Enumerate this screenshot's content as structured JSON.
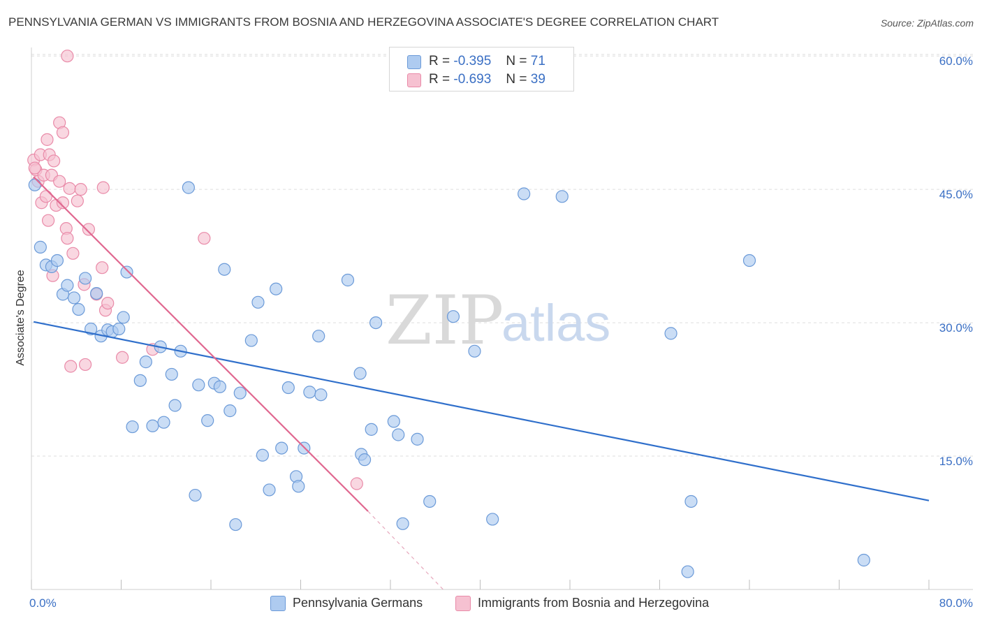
{
  "title": "PENNSYLVANIA GERMAN VS IMMIGRANTS FROM BOSNIA AND HERZEGOVINA ASSOCIATE'S DEGREE CORRELATION CHART",
  "source": "Source: ZipAtlas.com",
  "watermark": {
    "zip": "ZIP",
    "atlas": "atlas"
  },
  "legend_top": {
    "rows": [
      {
        "r_label": "R =",
        "r_value": "-0.395",
        "n_label": "N =",
        "n_value": "71"
      },
      {
        "r_label": "R =",
        "r_value": "-0.693",
        "n_label": "N =",
        "n_value": "39"
      }
    ]
  },
  "legend_bottom": {
    "series1": "Pennsylvania Germans",
    "series2": "Immigrants from Bosnia and Herzegovina"
  },
  "colors": {
    "blue_fill": "#aecbf0",
    "blue_stroke": "#6b9ad8",
    "blue_line": "#2f6fcb",
    "pink_fill": "#f6c1d1",
    "pink_stroke": "#e98aa8",
    "pink_line": "#e06890",
    "grid": "#dedede",
    "axis_label": "#3a6fc4"
  },
  "chart_data": {
    "type": "scatter",
    "title": "PENNSYLVANIA GERMAN VS IMMIGRANTS FROM BOSNIA AND HERZEGOVINA ASSOCIATE'S DEGREE CORRELATION CHART",
    "xlabel": "",
    "ylabel": "Associate's Degree",
    "xlim": [
      0,
      80
    ],
    "ylim": [
      0,
      62
    ],
    "x_tick_labels": {
      "left": "0.0%",
      "right": "80.0%"
    },
    "y_ticks": [
      {
        "value": 15,
        "label": "15.0%"
      },
      {
        "value": 30,
        "label": "30.0%"
      },
      {
        "value": 45,
        "label": "45.0%"
      },
      {
        "value": 60,
        "label": "60.0%"
      }
    ],
    "series": [
      {
        "name": "Pennsylvania Germans",
        "color": "blue",
        "points": [
          [
            0.3,
            45.5
          ],
          [
            0.8,
            38.5
          ],
          [
            1.3,
            36.5
          ],
          [
            1.8,
            36.3
          ],
          [
            2.3,
            37.0
          ],
          [
            2.8,
            33.2
          ],
          [
            3.2,
            34.2
          ],
          [
            3.8,
            32.8
          ],
          [
            4.2,
            31.5
          ],
          [
            4.8,
            35.0
          ],
          [
            5.3,
            29.3
          ],
          [
            5.8,
            33.3
          ],
          [
            6.2,
            28.5
          ],
          [
            6.8,
            29.2
          ],
          [
            7.2,
            29.0
          ],
          [
            7.8,
            29.3
          ],
          [
            8.2,
            30.6
          ],
          [
            8.5,
            35.7
          ],
          [
            9.0,
            18.3
          ],
          [
            9.7,
            23.5
          ],
          [
            10.2,
            25.6
          ],
          [
            10.8,
            18.4
          ],
          [
            11.5,
            27.3
          ],
          [
            11.8,
            18.8
          ],
          [
            12.5,
            24.2
          ],
          [
            12.8,
            20.7
          ],
          [
            13.3,
            26.8
          ],
          [
            14.0,
            45.2
          ],
          [
            14.6,
            10.6
          ],
          [
            14.9,
            23.0
          ],
          [
            15.7,
            19.0
          ],
          [
            16.3,
            23.2
          ],
          [
            16.8,
            22.8
          ],
          [
            17.2,
            36.0
          ],
          [
            17.7,
            20.1
          ],
          [
            18.2,
            7.3
          ],
          [
            18.6,
            22.1
          ],
          [
            19.6,
            28.0
          ],
          [
            20.2,
            32.3
          ],
          [
            20.6,
            15.1
          ],
          [
            21.2,
            11.2
          ],
          [
            21.8,
            33.8
          ],
          [
            22.3,
            15.9
          ],
          [
            22.9,
            22.7
          ],
          [
            23.6,
            12.7
          ],
          [
            23.8,
            11.6
          ],
          [
            24.3,
            15.9
          ],
          [
            24.8,
            22.2
          ],
          [
            25.6,
            28.5
          ],
          [
            25.8,
            21.9
          ],
          [
            28.2,
            34.8
          ],
          [
            29.3,
            24.3
          ],
          [
            29.4,
            15.2
          ],
          [
            29.7,
            14.6
          ],
          [
            30.3,
            18.0
          ],
          [
            30.7,
            30.0
          ],
          [
            32.3,
            18.9
          ],
          [
            32.7,
            17.4
          ],
          [
            33.1,
            7.4
          ],
          [
            34.4,
            16.9
          ],
          [
            35.5,
            9.9
          ],
          [
            37.6,
            30.7
          ],
          [
            39.5,
            26.8
          ],
          [
            41.1,
            7.9
          ],
          [
            43.9,
            44.5
          ],
          [
            47.3,
            44.2
          ],
          [
            57.0,
            28.8
          ],
          [
            58.5,
            2.0
          ],
          [
            58.8,
            9.9
          ],
          [
            64.0,
            37.0
          ],
          [
            74.2,
            3.3
          ]
        ],
        "trend": {
          "x1": 0.2,
          "y1": 30.1,
          "x2": 80,
          "y2": 10.0
        }
      },
      {
        "name": "Immigrants from Bosnia and Herzegovina",
        "color": "pink",
        "points": [
          [
            0.2,
            48.3
          ],
          [
            0.4,
            47.2
          ],
          [
            0.6,
            45.9
          ],
          [
            0.8,
            48.9
          ],
          [
            0.9,
            43.5
          ],
          [
            1.1,
            46.6
          ],
          [
            1.3,
            44.2
          ],
          [
            1.4,
            50.6
          ],
          [
            1.5,
            41.5
          ],
          [
            1.6,
            48.9
          ],
          [
            1.8,
            46.6
          ],
          [
            1.9,
            35.3
          ],
          [
            2.0,
            48.2
          ],
          [
            2.2,
            43.2
          ],
          [
            2.5,
            52.5
          ],
          [
            2.5,
            45.9
          ],
          [
            2.8,
            51.4
          ],
          [
            2.8,
            43.5
          ],
          [
            3.1,
            40.6
          ],
          [
            3.2,
            39.5
          ],
          [
            3.4,
            45.1
          ],
          [
            3.5,
            25.1
          ],
          [
            3.7,
            37.8
          ],
          [
            4.1,
            43.7
          ],
          [
            4.4,
            45.0
          ],
          [
            4.7,
            34.3
          ],
          [
            4.8,
            25.3
          ],
          [
            5.1,
            40.5
          ],
          [
            5.8,
            33.2
          ],
          [
            6.3,
            36.2
          ],
          [
            6.4,
            45.2
          ],
          [
            6.6,
            31.4
          ],
          [
            6.8,
            32.2
          ],
          [
            8.1,
            26.1
          ],
          [
            10.8,
            27.0
          ],
          [
            15.4,
            39.5
          ],
          [
            29.0,
            11.9
          ],
          [
            3.2,
            60.0
          ],
          [
            0.3,
            47.4
          ]
        ],
        "trend": {
          "x1": 0.2,
          "y1": 46.4,
          "x2": 30.0,
          "y2": 8.8
        },
        "trend_extension": {
          "x1": 30.0,
          "y1": 8.8,
          "x2": 36.7,
          "y2": 0
        }
      }
    ]
  }
}
